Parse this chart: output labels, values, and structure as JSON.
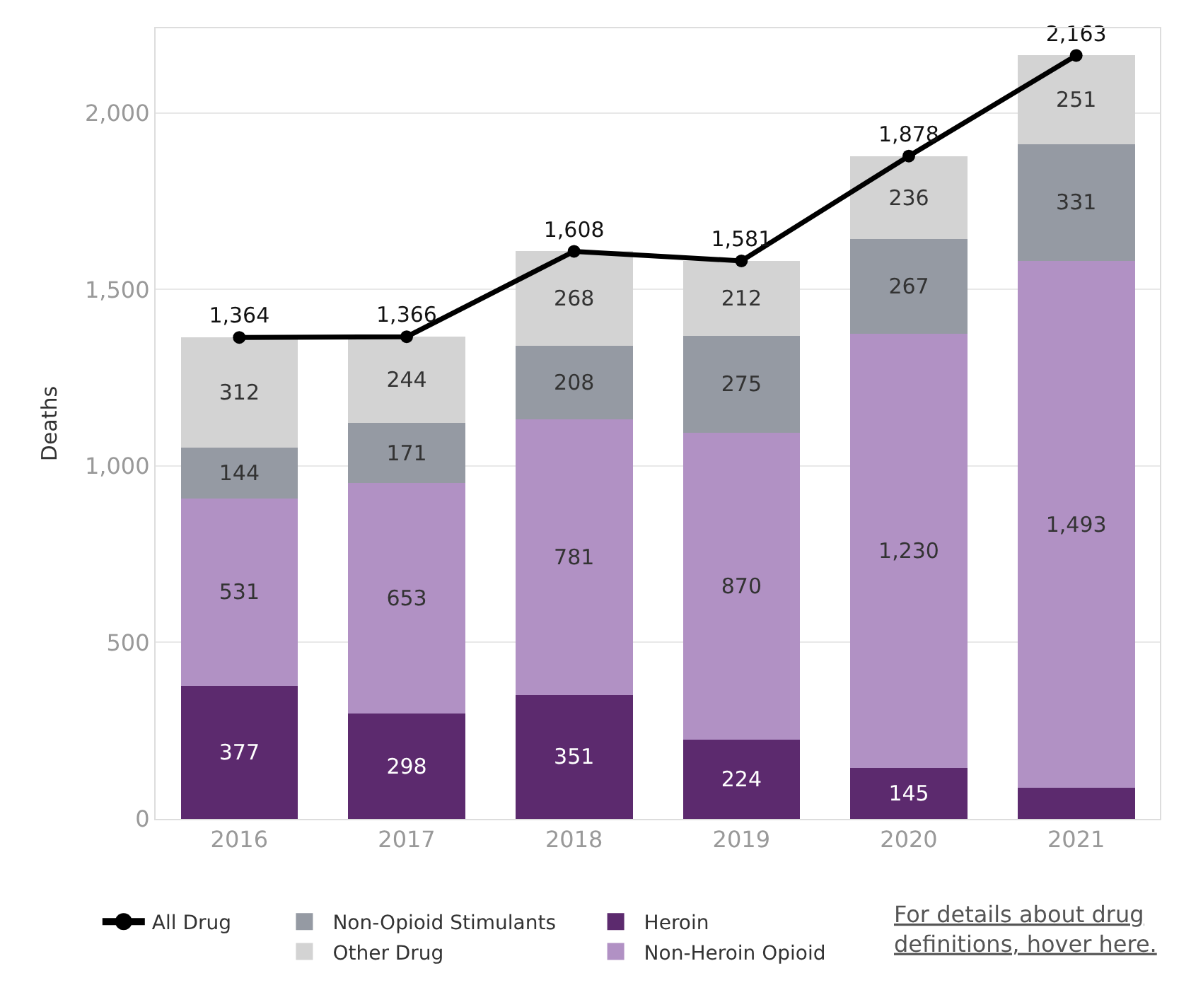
{
  "chart_data": {
    "type": "bar",
    "stacked": true,
    "ylabel": "Deaths",
    "categories": [
      "2016",
      "2017",
      "2018",
      "2019",
      "2020",
      "2021"
    ],
    "series": [
      {
        "name": "Heroin",
        "color": "#5c2a6e",
        "values": [
          377,
          298,
          351,
          224,
          145,
          88
        ],
        "value_labels": [
          "377",
          "298",
          "351",
          "224",
          "145",
          null
        ]
      },
      {
        "name": "Non-Heroin Opioid",
        "color": "#b191c4",
        "values": [
          531,
          653,
          781,
          870,
          1230,
          1493
        ],
        "value_labels": [
          "531",
          "653",
          "781",
          "870",
          "1,230",
          "1,493"
        ]
      },
      {
        "name": "Non-Opioid Stimulants",
        "color": "#959aa3",
        "values": [
          144,
          171,
          208,
          275,
          267,
          331
        ],
        "value_labels": [
          "144",
          "171",
          "208",
          "275",
          "267",
          "331"
        ]
      },
      {
        "name": "Other Drug",
        "color": "#d3d3d3",
        "values": [
          312,
          244,
          268,
          212,
          236,
          251
        ],
        "value_labels": [
          "312",
          "244",
          "268",
          "212",
          "236",
          "251"
        ]
      },
      {
        "name": "All Drug",
        "type": "line",
        "color": "#000000",
        "marker": "circle",
        "values": [
          1364,
          1366,
          1608,
          1581,
          1878,
          2163
        ],
        "value_labels": [
          "1,364",
          "1,366",
          "1,608",
          "1,581",
          "1,878",
          "2,163"
        ]
      }
    ],
    "ylim": [
      0,
      2240
    ],
    "yticks": [
      {
        "value": 0,
        "label": "0"
      },
      {
        "value": 500,
        "label": "500"
      },
      {
        "value": 1000,
        "label": "1,000"
      },
      {
        "value": 1500,
        "label": "1,500"
      },
      {
        "value": 2000,
        "label": "2,000"
      }
    ],
    "grid": "y",
    "legend": "bottom",
    "annotations": [
      "For details about drug definitions, hover here."
    ]
  }
}
